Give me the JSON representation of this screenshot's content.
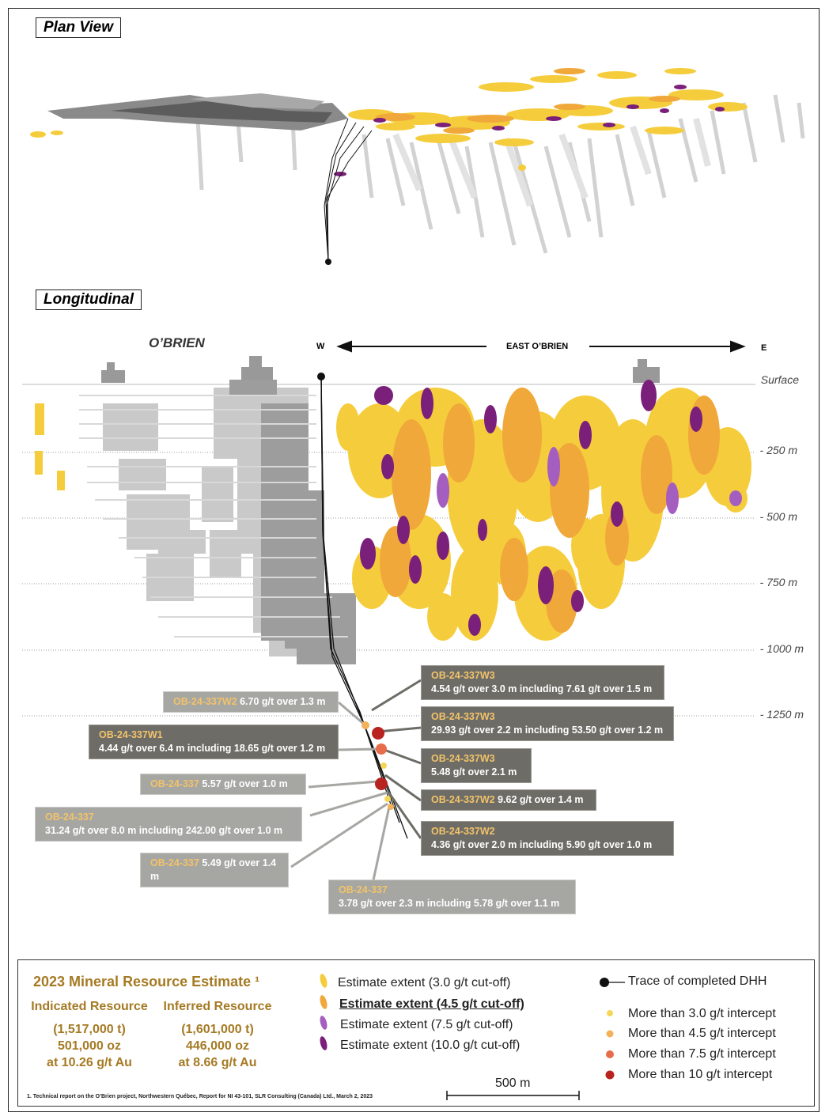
{
  "labels": {
    "plan_view": "Plan View",
    "longitudinal": "Longitudinal",
    "obrien": "O’BRIEN",
    "west": "W",
    "east": "E",
    "east_obrien": "EAST O’BRIEN",
    "surface": "Surface"
  },
  "depths": [
    "- 250 m",
    "- 500 m",
    "- 750 m",
    "- 1000 m",
    "- 1250 m"
  ],
  "callouts": [
    {
      "hole": "OB-24-337W3",
      "text": "4.54 g/t over 3.0 m including 7.61 g/t over 1.5 m"
    },
    {
      "hole": "OB-24-337W2",
      "text": "6.70 g/t over 1.3 m"
    },
    {
      "hole": "OB-24-337W3",
      "text": "29.93 g/t over 2.2 m including 53.50 g/t over 1.2 m"
    },
    {
      "hole": "OB-24-337W1",
      "text": "4.44 g/t over 6.4 m including 18.65 g/t over 1.2 m"
    },
    {
      "hole": "OB-24-337W3",
      "text": "5.48 g/t over 2.1 m"
    },
    {
      "hole": "OB-24-337",
      "text": "5.57 g/t over 1.0 m"
    },
    {
      "hole": "OB-24-337W2",
      "text": "9.62 g/t over 1.4 m"
    },
    {
      "hole": "OB-24-337",
      "text": "31.24 g/t over 8.0 m including 242.00 g/t over 1.0 m"
    },
    {
      "hole": "OB-24-337W2",
      "text": "4.36 g/t over 2.0 m including 5.90 g/t over 1.0 m"
    },
    {
      "hole": "OB-24-337",
      "text": "5.49 g/t over 1.4 m"
    },
    {
      "hole": "OB-24-337",
      "text": "3.78 g/t over 2.3 m including 5.78 g/t over 1.1 m"
    }
  ],
  "resource": {
    "title": "2023 Mineral Resource Estimate ¹",
    "indicated": {
      "heading": "Indicated Resource",
      "tonnes": "(1,517,000 t)",
      "ounces": "501,000 oz",
      "grade": "at 10.26 g/t Au"
    },
    "inferred": {
      "heading": "Inferred Resource",
      "tonnes": "(1,601,000 t)",
      "ounces": "446,000 oz",
      "grade": "at 8.66 g/t Au"
    }
  },
  "legend": {
    "extent": [
      {
        "label": "Estimate extent (3.0  g/t cut-off)",
        "color": "#f5cd3c"
      },
      {
        "label": "Estimate extent (4.5  g/t cut-off)",
        "color": "#f0a83a"
      },
      {
        "label": "Estimate extent (7.5 g/t cut-off)",
        "color": "#a45ec0"
      },
      {
        "label": "Estimate extent (10.0 g/t cut-off)",
        "color": "#7a1f7a"
      }
    ],
    "trace": "Trace of completed DHH",
    "intercepts": [
      {
        "label": "More than 3.0 g/t intercept",
        "color": "#f6d65a"
      },
      {
        "label": "More than 4.5 g/t intercept",
        "color": "#f3b15a"
      },
      {
        "label": "More than 7.5 g/t intercept",
        "color": "#e76c4a"
      },
      {
        "label": "More than 10 g/t intercept",
        "color": "#b8231f"
      }
    ],
    "scale": "500 m"
  },
  "footnote": "1. Technical report on the O’Brien project, Northwestern Québec, Report for NI 43-101, SLR Consulting (Canada) Ltd., March 2, 2023"
}
